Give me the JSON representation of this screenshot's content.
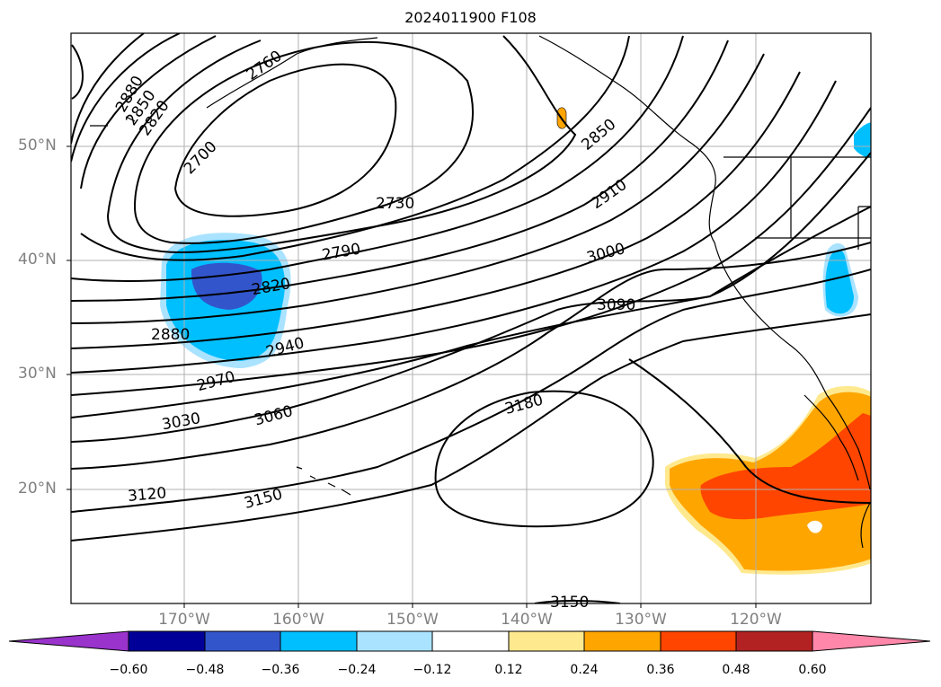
{
  "title": "2024011900 F108",
  "lat_labels": [
    "50°N",
    "40°N",
    "30°N",
    "20°N"
  ],
  "lon_labels": [
    "170°W",
    "160°W",
    "150°W",
    "140°W",
    "130°W",
    "120°W"
  ],
  "contour_labels": [
    "2760",
    "2880",
    "2850",
    "2820",
    "2700",
    "2730",
    "2790",
    "2850",
    "2910",
    "3000",
    "3090",
    "2820",
    "2880",
    "2940",
    "2970",
    "3030",
    "3060",
    "3180",
    "3120",
    "3150",
    "3150"
  ],
  "colorbar": {
    "ticks": [
      "−0.60",
      "−0.48",
      "−0.36",
      "−0.24",
      "−0.12",
      "0.12",
      "0.24",
      "0.36",
      "0.48",
      "0.60"
    ],
    "colors": [
      "#9933cc",
      "#000099",
      "#3355cc",
      "#00bfff",
      "#aae3ff",
      "#ffffff",
      "#ffe98f",
      "#ffa500",
      "#ff4500",
      "#b22222",
      "#ff88aa"
    ]
  }
}
